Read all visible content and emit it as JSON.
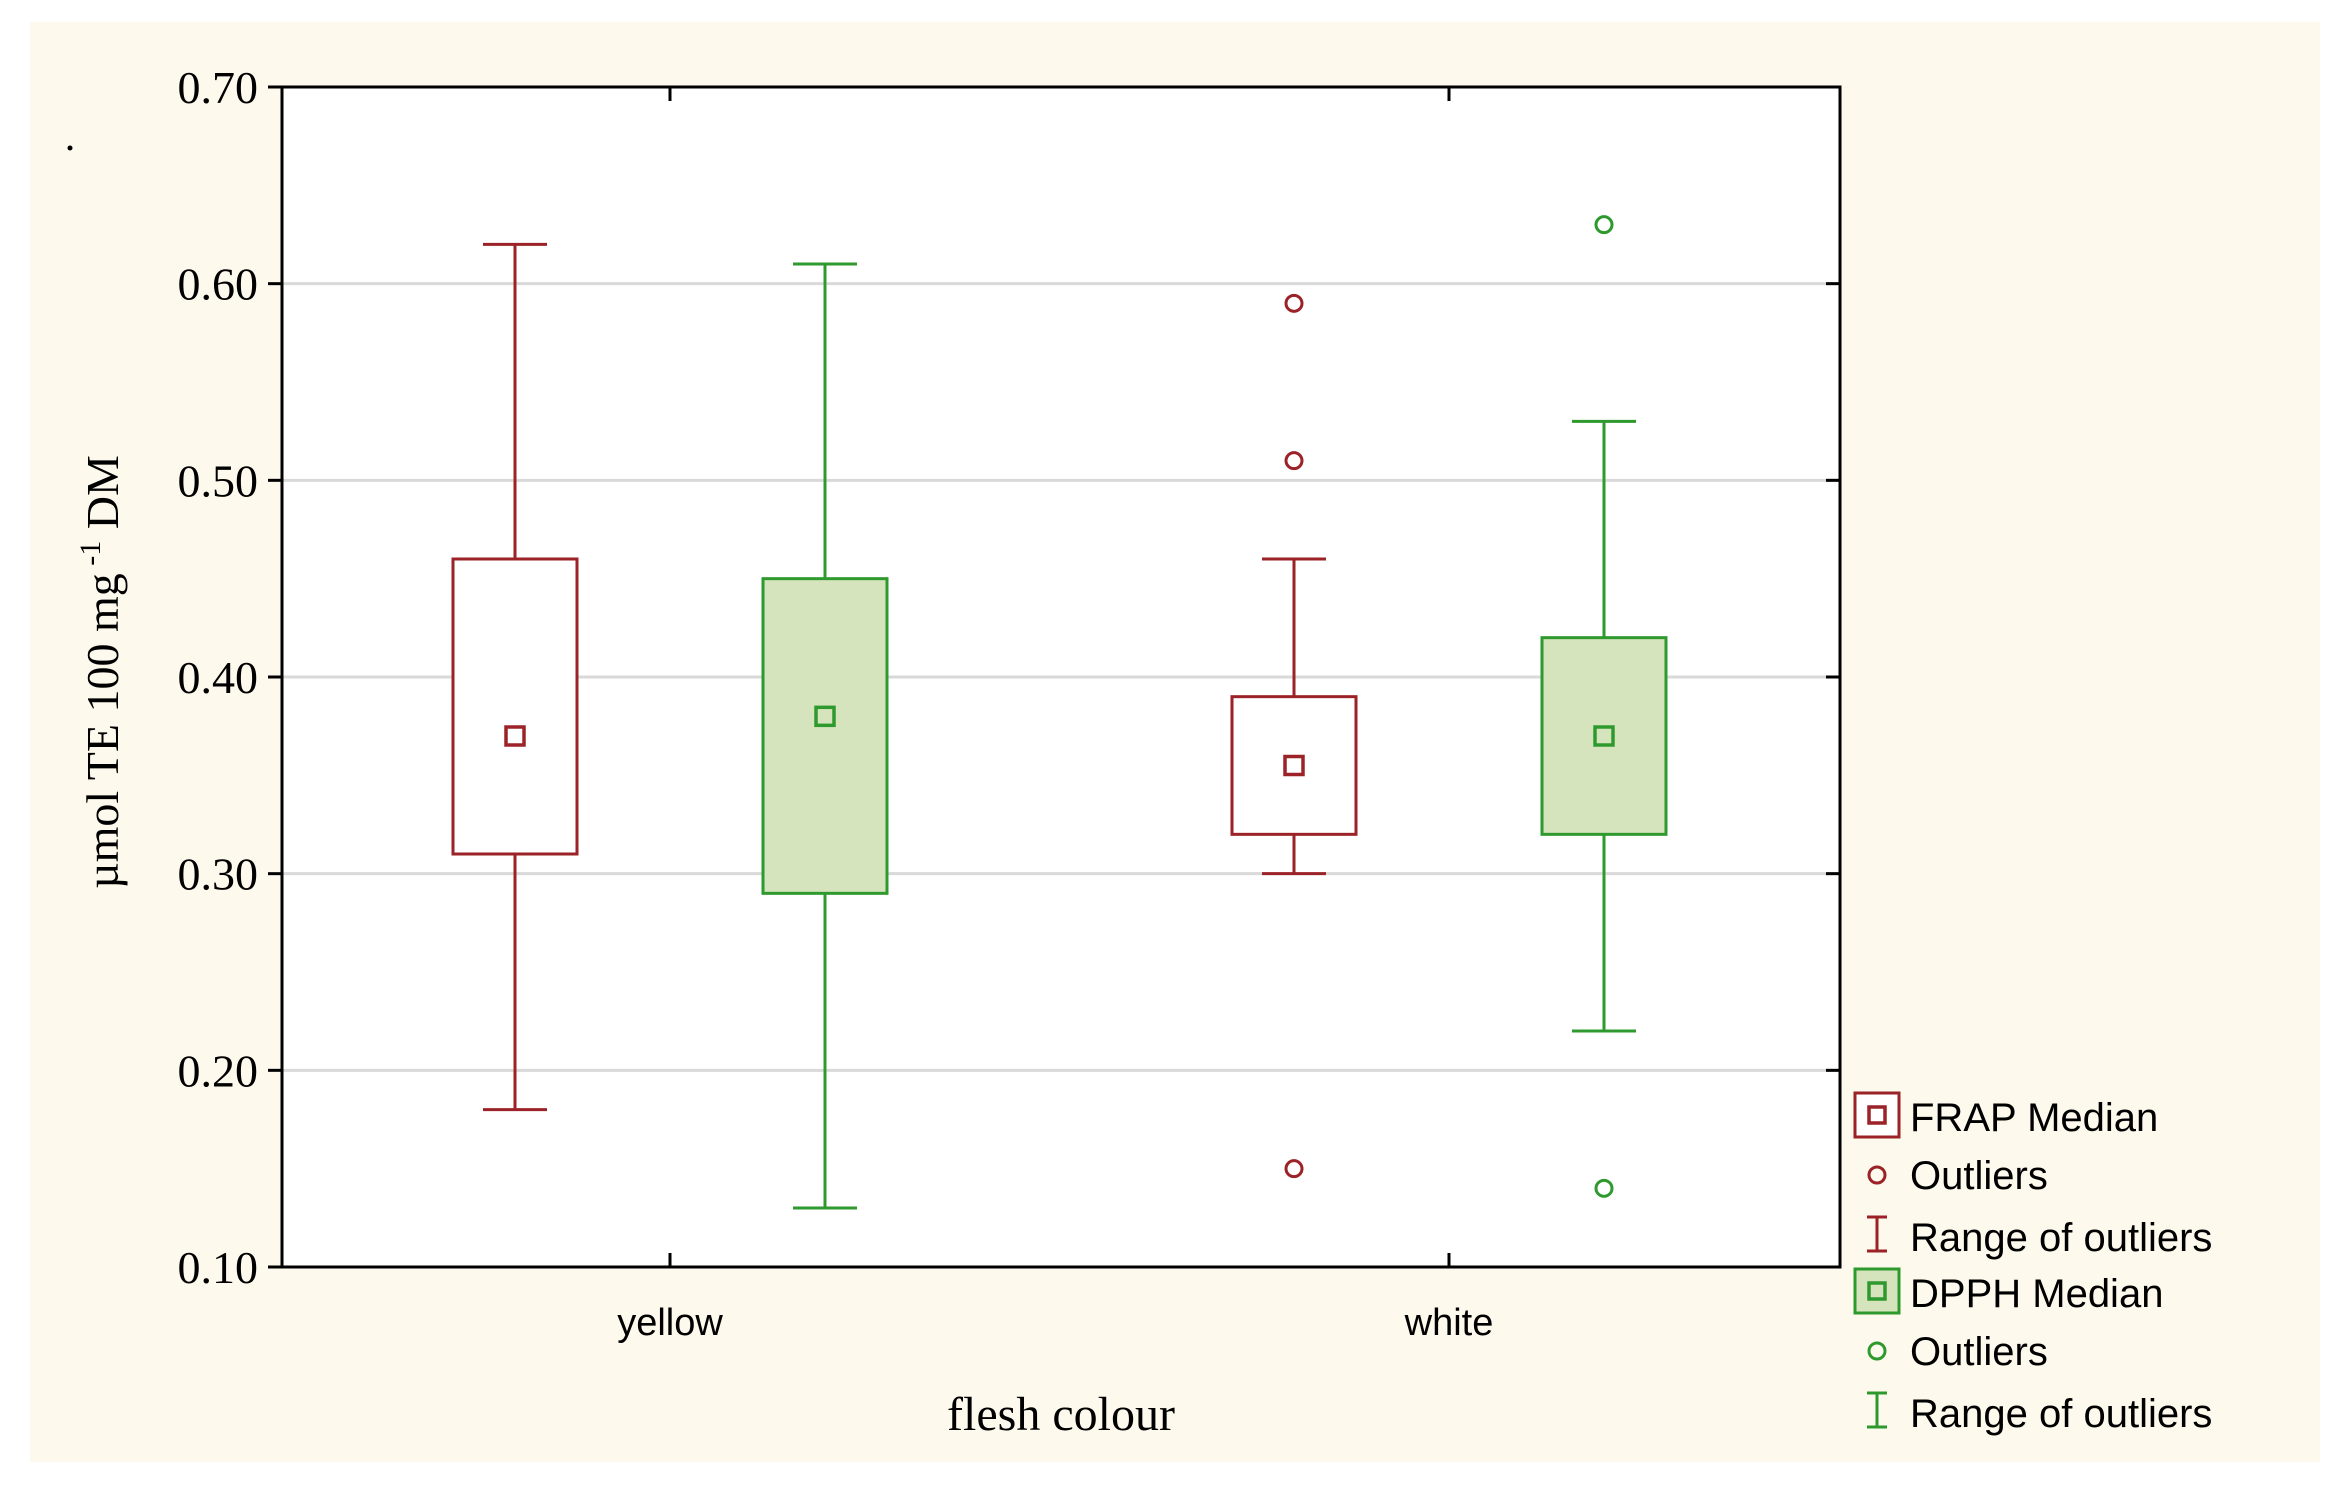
{
  "chart_data": {
    "type": "box",
    "xlabel": "flesh colour",
    "ylabel_main": "µmol TE 100 mg",
    "ylabel_sup": "-1",
    "ylabel_tail": " DM",
    "ylim": [
      0.1,
      0.7
    ],
    "yticks": [
      "0.10",
      "0.20",
      "0.30",
      "0.40",
      "0.50",
      "0.60",
      "0.70"
    ],
    "grid": true,
    "legend_position": "right-bottom",
    "categories": [
      "yellow",
      "white"
    ],
    "series": [
      {
        "name": "FRAP",
        "color": "#9b2226",
        "fill": "#ffffff",
        "boxes": [
          {
            "category": "yellow",
            "whisker_low": 0.18,
            "q1": 0.31,
            "median": 0.37,
            "q3": 0.46,
            "whisker_high": 0.62,
            "outliers": []
          },
          {
            "category": "white",
            "whisker_low": 0.3,
            "q1": 0.32,
            "median": 0.355,
            "q3": 0.39,
            "whisker_high": 0.46,
            "outliers": [
              0.59,
              0.51,
              0.15
            ]
          }
        ]
      },
      {
        "name": "DPPH",
        "color": "#2e9a2e",
        "fill": "#d6e4bd",
        "boxes": [
          {
            "category": "yellow",
            "whisker_low": 0.13,
            "q1": 0.29,
            "median": 0.38,
            "q3": 0.45,
            "whisker_high": 0.61,
            "outliers": []
          },
          {
            "category": "white",
            "whisker_low": 0.22,
            "q1": 0.32,
            "median": 0.37,
            "q3": 0.42,
            "whisker_high": 0.53,
            "outliers": [
              0.63,
              0.14
            ]
          }
        ]
      }
    ],
    "legend": [
      {
        "label": "FRAP Median",
        "symbol": "median-box",
        "series": 0
      },
      {
        "label": "Outliers",
        "symbol": "circle",
        "series": 0
      },
      {
        "label": "Range of outliers",
        "symbol": "range",
        "series": 0
      },
      {
        "label": "DPPH Median",
        "symbol": "median-box",
        "series": 1
      },
      {
        "label": "Outliers",
        "symbol": "circle",
        "series": 1
      },
      {
        "label": "Range of outliers",
        "symbol": "range",
        "series": 1
      }
    ],
    "colors": {
      "background": "#fdf9ec",
      "plot_bg": "#ffffff",
      "grid": "#d9d9d9",
      "axis": "#000000"
    }
  }
}
